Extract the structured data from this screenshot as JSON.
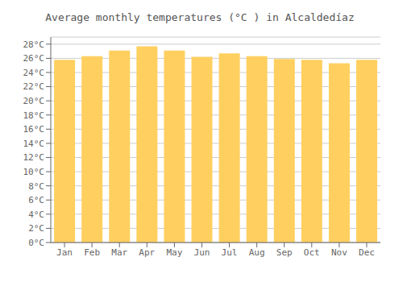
{
  "chart_data": {
    "type": "bar",
    "title": "Average monthly temperatures (°C ) in Alcaldedíaz",
    "categories": [
      "Jan",
      "Feb",
      "Mar",
      "Apr",
      "May",
      "Jun",
      "Jul",
      "Aug",
      "Sep",
      "Oct",
      "Nov",
      "Dec"
    ],
    "values": [
      25.8,
      26.3,
      27.1,
      27.7,
      27.1,
      26.2,
      26.7,
      26.3,
      25.9,
      25.8,
      25.3,
      25.8
    ],
    "color": "#FFD060",
    "ylim": [
      0,
      29
    ],
    "yticks": [
      {
        "value": 0,
        "label": "0°C"
      },
      {
        "value": 2,
        "label": "2°C"
      },
      {
        "value": 4,
        "label": "4°C"
      },
      {
        "value": 6,
        "label": "6°C"
      },
      {
        "value": 8,
        "label": "8°C"
      },
      {
        "value": 10,
        "label": "10°C"
      },
      {
        "value": 12,
        "label": "12°C"
      },
      {
        "value": 14,
        "label": "14°C"
      },
      {
        "value": 16,
        "label": "16°C"
      },
      {
        "value": 18,
        "label": "18°C"
      },
      {
        "value": 20,
        "label": "20°C"
      },
      {
        "value": 22,
        "label": "22°C"
      },
      {
        "value": 24,
        "label": "24°C"
      },
      {
        "value": 26,
        "label": "26°C"
      },
      {
        "value": 28,
        "label": "28°C"
      }
    ],
    "grid": true
  }
}
